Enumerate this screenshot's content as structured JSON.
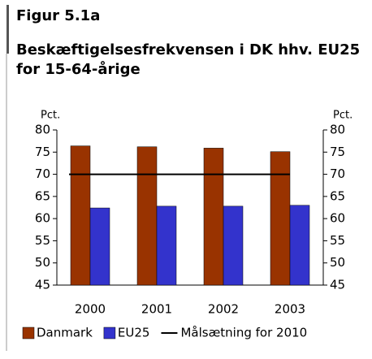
{
  "chart_data": {
    "type": "bar",
    "figure_label": "Figur 5.1a",
    "title_lines": [
      "Beskæftigelsesfrekvensen i DK hhv. EU25",
      "for 15-64-årige"
    ],
    "y_label": "Pct.",
    "y2_label": "Pct.",
    "categories": [
      "2000",
      "2001",
      "2002",
      "2003"
    ],
    "series": [
      {
        "name": "Danmark",
        "color": "#993300",
        "values": [
          76.4,
          76.2,
          75.9,
          75.1
        ]
      },
      {
        "name": "EU25",
        "color": "#3333cc",
        "values": [
          62.4,
          62.8,
          62.8,
          63.0
        ]
      },
      {
        "name": "Målsætning for 2010",
        "color": "#000000",
        "type": "line",
        "values": [
          70,
          70,
          70,
          70
        ]
      }
    ],
    "ylim": [
      45,
      80
    ],
    "yticks": [
      45,
      50,
      55,
      60,
      65,
      70,
      75,
      80
    ],
    "y2lim": [
      45,
      80
    ],
    "y2ticks": [
      45,
      50,
      55,
      60,
      65,
      70,
      75,
      80
    ],
    "legend": "bottom"
  }
}
